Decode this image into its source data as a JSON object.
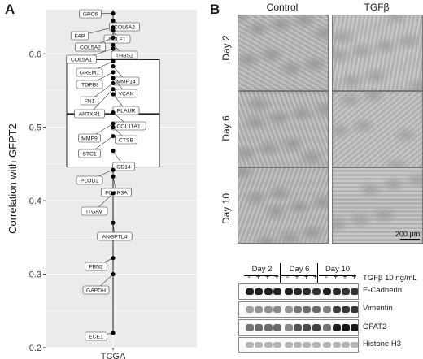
{
  "panel_a_letter": "A",
  "panel_b_letter": "B",
  "chart_data": {
    "type": "boxplot-with-labeled-points",
    "ylabel": "Correlation with GFPT2",
    "xlabel": "",
    "category": "TCGA",
    "ylim": [
      0.2,
      0.66
    ],
    "yticks": [
      0.2,
      0.3,
      0.4,
      0.5,
      0.6
    ],
    "ytick_labels": [
      "0.2",
      "0.3",
      "0.4",
      "0.5",
      "0.6"
    ],
    "box": {
      "q1": 0.446,
      "median": 0.518,
      "q3": 0.592,
      "whisker_low": 0.22,
      "whisker_high": 0.66
    },
    "points": [
      {
        "gene": "GPC6",
        "value": 0.655
      },
      {
        "gene": "COL6A2",
        "value": 0.645
      },
      {
        "gene": "FAP",
        "value": 0.636
      },
      {
        "gene": "SULF1",
        "value": 0.632
      },
      {
        "gene": "COL5A2",
        "value": 0.622
      },
      {
        "gene": "THBS2",
        "value": 0.612
      },
      {
        "gene": "COL5A1",
        "value": 0.607
      },
      {
        "gene": "GREM1",
        "value": 0.59
      },
      {
        "gene": "MMP14",
        "value": 0.583
      },
      {
        "gene": "TGFBI",
        "value": 0.575
      },
      {
        "gene": "VCAN",
        "value": 0.567
      },
      {
        "gene": "FN1",
        "value": 0.56
      },
      {
        "gene": "ANTXR1",
        "value": 0.552
      },
      {
        "gene": "PLAUR",
        "value": 0.545
      },
      {
        "gene": "COL11A1",
        "value": 0.52
      },
      {
        "gene": "MMP9",
        "value": 0.505
      },
      {
        "gene": "CTSB",
        "value": 0.5
      },
      {
        "gene": "STC1",
        "value": 0.488
      },
      {
        "gene": "CD14",
        "value": 0.468
      },
      {
        "gene": "PLOD2",
        "value": 0.442
      },
      {
        "gene": "FCGR3A",
        "value": 0.433
      },
      {
        "gene": "ITGAV",
        "value": 0.41
      },
      {
        "gene": "ANGPTL4",
        "value": 0.37
      },
      {
        "gene": "FBN2",
        "value": 0.322
      },
      {
        "gene": "GAPDH",
        "value": 0.3
      },
      {
        "gene": "ECE1",
        "value": 0.22
      }
    ],
    "grid": true
  },
  "panel_b": {
    "columns": [
      "Control",
      "TGFβ"
    ],
    "rows": [
      "Day 2",
      "Day 6",
      "Day 10"
    ],
    "scale_bar": "200 μm",
    "blot": {
      "days": [
        "Day 2",
        "Day 6",
        "Day 10"
      ],
      "tgf_label": "TGFβ 10 ng/mL",
      "tgf_signs": [
        "-",
        "+",
        "+",
        "+",
        "-",
        "+",
        "+",
        "+",
        "-",
        "+",
        "+",
        "+"
      ],
      "rows": [
        "E-Cadherin",
        "Vimentin",
        "GFAT2",
        "Histone H3"
      ],
      "band_intensity": {
        "E-Cadherin": [
          0.95,
          0.95,
          0.95,
          0.92,
          0.95,
          0.9,
          0.88,
          0.86,
          0.95,
          0.9,
          0.86,
          0.86
        ],
        "Vimentin": [
          0.35,
          0.4,
          0.42,
          0.45,
          0.4,
          0.55,
          0.58,
          0.6,
          0.5,
          0.8,
          0.85,
          0.85
        ],
        "GFAT2": [
          0.55,
          0.6,
          0.6,
          0.6,
          0.45,
          0.7,
          0.75,
          0.8,
          0.55,
          0.95,
          0.98,
          0.98
        ],
        "Histone H3": [
          0.25,
          0.25,
          0.25,
          0.25,
          0.25,
          0.25,
          0.25,
          0.25,
          0.25,
          0.25,
          0.25,
          0.25
        ]
      }
    }
  }
}
